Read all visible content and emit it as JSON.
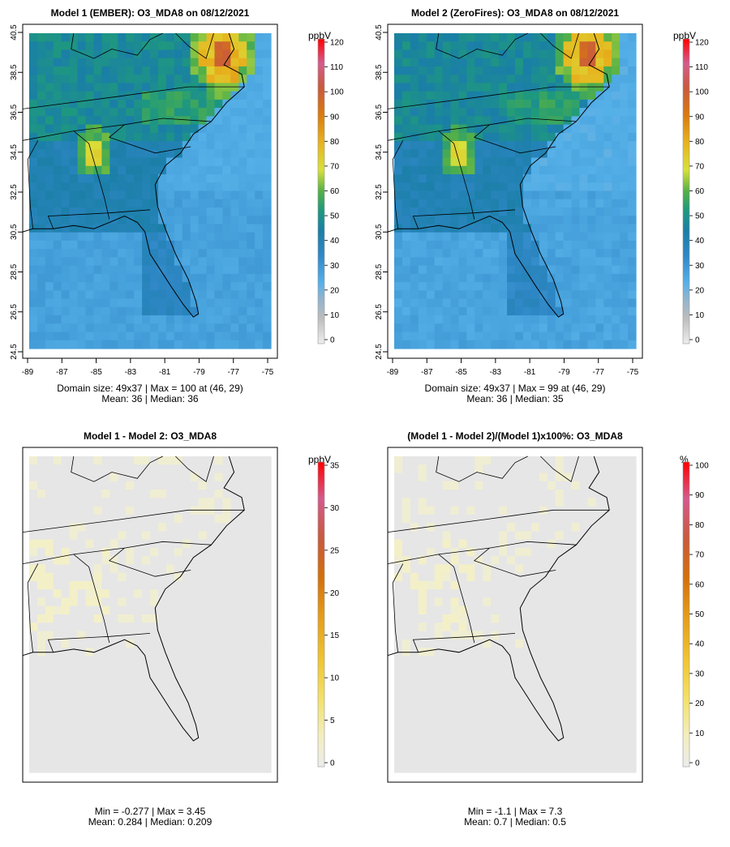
{
  "chart_data": [
    {
      "type": "heatmap",
      "title": "Model 1 (EMBER): O3_MDA8 on 08/12/2021",
      "units": "ppbV",
      "colorbar_ticks": [
        "0",
        "10",
        "20",
        "30",
        "40",
        "50",
        "60",
        "70",
        "80",
        "90",
        "100",
        "110",
        "120"
      ],
      "colorbar_range": [
        0,
        120
      ],
      "x_ticks": [
        "-89",
        "-87",
        "-85",
        "-83",
        "-81",
        "-79",
        "-77",
        "-75"
      ],
      "y_ticks": [
        "24.5",
        "26.5",
        "28.5",
        "30.5",
        "32.5",
        "34.5",
        "36.5",
        "38.5",
        "40.5"
      ],
      "xlim": [
        -89,
        -75
      ],
      "ylim": [
        24.5,
        40.5
      ],
      "stats_line1": "Domain size: 49x37 | Max = 100 at (46, 29)",
      "stats_line2": "Mean: 36 |  Median: 36",
      "mean": 36,
      "median": 36,
      "max": 100,
      "variant": "model1"
    },
    {
      "type": "heatmap",
      "title": "Model 2 (ZeroFires): O3_MDA8 on 08/12/2021",
      "units": "ppbV",
      "colorbar_ticks": [
        "0",
        "10",
        "20",
        "30",
        "40",
        "50",
        "60",
        "70",
        "80",
        "90",
        "100",
        "110",
        "120"
      ],
      "colorbar_range": [
        0,
        120
      ],
      "x_ticks": [
        "-89",
        "-87",
        "-85",
        "-83",
        "-81",
        "-79",
        "-77",
        "-75"
      ],
      "y_ticks": [
        "24.5",
        "26.5",
        "28.5",
        "30.5",
        "32.5",
        "34.5",
        "36.5",
        "38.5",
        "40.5"
      ],
      "xlim": [
        -89,
        -75
      ],
      "ylim": [
        24.5,
        40.5
      ],
      "stats_line1": "Domain size: 49x37 | Max = 99 at (46, 29)",
      "stats_line2": "Mean: 36 |  Median: 35",
      "mean": 36,
      "median": 35,
      "max": 99,
      "variant": "model2"
    },
    {
      "type": "heatmap",
      "title": "Model 1 - Model 2: O3_MDA8",
      "units": "ppbV",
      "colorbar_ticks": [
        "0",
        "5",
        "10",
        "15",
        "20",
        "25",
        "30",
        "35"
      ],
      "colorbar_range": [
        0,
        35
      ],
      "stats_line1": "Min = -0.277 | Max = 3.45",
      "stats_line2": "Mean: 0.284 |  Median: 0.209",
      "min": -0.277,
      "max": 3.45,
      "mean": 0.284,
      "median": 0.209,
      "variant": "diff"
    },
    {
      "type": "heatmap",
      "title": "(Model 1 - Model 2)/(Model 1)x100%: O3_MDA8",
      "units": "%",
      "colorbar_ticks": [
        "0",
        "10",
        "20",
        "30",
        "40",
        "50",
        "60",
        "70",
        "80",
        "90",
        "100"
      ],
      "colorbar_range": [
        0,
        100
      ],
      "stats_line1": "Min = -1.1 | Max = 7.3",
      "stats_line2": "Mean: 0.7 |  Median: 0.5",
      "min": -1.1,
      "max": 7.3,
      "mean": 0.7,
      "median": 0.5,
      "variant": "pct"
    }
  ]
}
